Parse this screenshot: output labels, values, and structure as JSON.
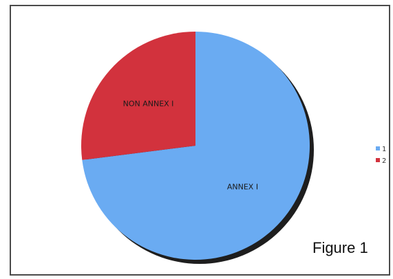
{
  "caption": "Figure 1",
  "chart_data": {
    "type": "pie",
    "title": "",
    "start_angle_deg": 0,
    "direction": "clockwise",
    "slices": [
      {
        "label": "ANNEX I",
        "value": 73,
        "legend": "1",
        "color": "#6aabf2"
      },
      {
        "label": "NON ANNEX I",
        "value": 27,
        "legend": "2",
        "color": "#d2323d"
      }
    ],
    "legend_position": "right",
    "shadow": true
  }
}
